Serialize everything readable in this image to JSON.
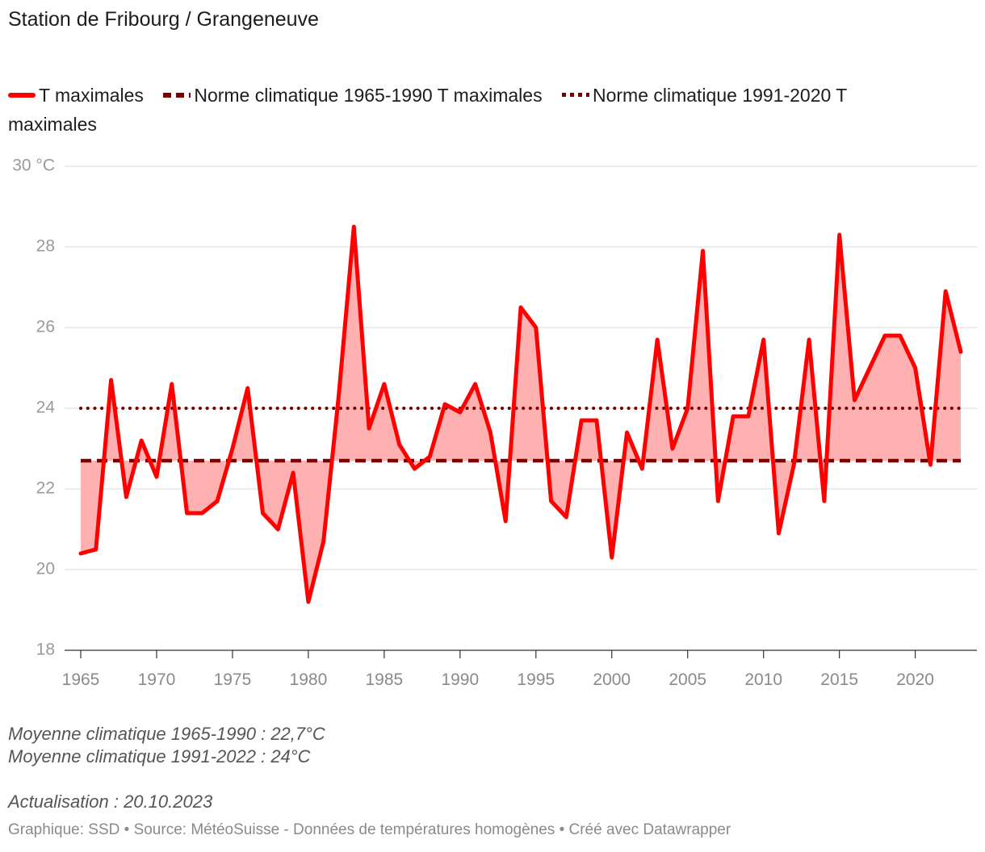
{
  "title": "Station de Fribourg / Grangeneuve",
  "legend": [
    {
      "label": "T maximales",
      "style": "solid",
      "color": "#ff0000"
    },
    {
      "label": "Norme climatique 1965-1990 T maximales",
      "style": "dashed",
      "color": "#7a0000"
    },
    {
      "label": "Norme climatique 1991-2020 T maximales",
      "style": "dotted",
      "color": "#7a0000"
    }
  ],
  "notes": {
    "line1": "Moyenne climatique 1965-1990 : 22,7°C",
    "line2": "Moyenne climatique 1991-2022 : 24°C",
    "line3": "Actualisation : 20.10.2023"
  },
  "footer": "Graphique: SSD • Source: MétéoSuisse - Données de températures homogènes • Créé avec Datawrapper",
  "chart_data": {
    "type": "line",
    "ylim": [
      18,
      30
    ],
    "xlim": [
      1965,
      2023
    ],
    "yticks": [
      {
        "value": 30,
        "label": "30 °C"
      },
      {
        "value": 28,
        "label": "28"
      },
      {
        "value": 26,
        "label": "26"
      },
      {
        "value": 24,
        "label": "24"
      },
      {
        "value": 22,
        "label": "22"
      },
      {
        "value": 20,
        "label": "20"
      },
      {
        "value": 18,
        "label": "18"
      }
    ],
    "xticks": [
      1965,
      1970,
      1975,
      1980,
      1985,
      1990,
      1995,
      2000,
      2005,
      2010,
      2015,
      2020
    ],
    "grid": true,
    "fill_color": "#ffb0b0",
    "series": [
      {
        "name": "T maximales",
        "color": "#ff0000",
        "x": [
          1965,
          1966,
          1967,
          1968,
          1969,
          1970,
          1971,
          1972,
          1973,
          1974,
          1975,
          1976,
          1977,
          1978,
          1979,
          1980,
          1981,
          1982,
          1983,
          1984,
          1985,
          1986,
          1987,
          1988,
          1989,
          1990,
          1991,
          1992,
          1993,
          1994,
          1995,
          1996,
          1997,
          1998,
          1999,
          2000,
          2001,
          2002,
          2003,
          2004,
          2005,
          2006,
          2007,
          2008,
          2009,
          2010,
          2011,
          2012,
          2013,
          2014,
          2015,
          2016,
          2017,
          2018,
          2019,
          2020,
          2021,
          2022,
          2023
        ],
        "y": [
          20.4,
          20.5,
          24.7,
          21.8,
          23.2,
          22.3,
          24.6,
          21.4,
          21.4,
          21.7,
          23.0,
          24.5,
          21.4,
          21.0,
          22.4,
          19.2,
          20.7,
          24.3,
          28.5,
          23.5,
          24.6,
          23.1,
          22.5,
          22.8,
          24.1,
          23.9,
          24.6,
          23.4,
          21.2,
          26.5,
          26.0,
          21.7,
          21.3,
          23.7,
          23.7,
          20.3,
          23.4,
          22.5,
          25.7,
          23.0,
          24.0,
          27.9,
          21.7,
          23.8,
          23.8,
          25.7,
          20.9,
          22.6,
          25.7,
          21.7,
          28.3,
          24.2,
          25.0,
          25.8,
          25.8,
          25.0,
          22.6,
          26.9,
          25.4
        ]
      },
      {
        "name": "Norme climatique 1965-1990 T maximales",
        "color": "#7a0000",
        "x": [
          1965,
          2023
        ],
        "y": [
          22.7,
          22.7
        ]
      },
      {
        "name": "Norme climatique 1991-2020 T maximales",
        "color": "#7a0000",
        "x": [
          1965,
          2023
        ],
        "y": [
          24.0,
          24.0
        ]
      }
    ]
  }
}
